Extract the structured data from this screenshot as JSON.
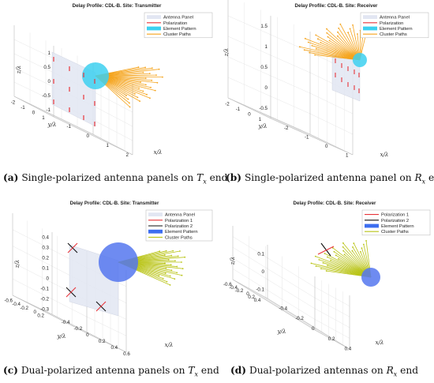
{
  "chart_data": [
    {
      "type": "scatter",
      "title": "Delay Profile: CDL-B. Site: Transmitter",
      "xlabel": "x/λ",
      "ylabel": "y/λ",
      "zlabel": "z/λ",
      "x_ticks": [
        "-1",
        "0",
        "1",
        "2"
      ],
      "y_ticks": [
        "-2",
        "-1",
        "0",
        "1"
      ],
      "z_ticks": [
        "-1",
        "-0.5",
        "0",
        "0.5",
        "1"
      ],
      "legend": [
        "Antenna Panel",
        "Polarization",
        "Element Pattern",
        "Cluster Paths"
      ],
      "legend_colors": [
        "#e2e6f2",
        "#e8343a",
        "#3dd0f0",
        "#f5a31a"
      ],
      "caption_tag": "(a)",
      "caption_text": "Single-polarized antenna panels on",
      "caption_sym": "T",
      "caption_sub": "x",
      "caption_end": "end"
    },
    {
      "type": "scatter",
      "title": "Delay Profile: CDL-B. Site: Receiver",
      "xlabel": "x/λ",
      "ylabel": "y/λ",
      "zlabel": "z/λ",
      "x_ticks": [
        "-2",
        "-1",
        "0",
        "1"
      ],
      "y_ticks": [
        "-2",
        "-1",
        "0",
        "1"
      ],
      "z_ticks": [
        "-0.5",
        "0",
        "0.5",
        "1",
        "1.5"
      ],
      "legend": [
        "Antenna Panel",
        "Polarization",
        "Element Pattern",
        "Cluster Paths"
      ],
      "legend_colors": [
        "#e2e6f2",
        "#e8343a",
        "#3dd0f0",
        "#f5a31a"
      ],
      "caption_tag": "(b)",
      "caption_text": "Single-polarized antenna panel on",
      "caption_sym": "R",
      "caption_sub": "x",
      "caption_end": "end"
    },
    {
      "type": "scatter",
      "title": "Delay Profile: CDL-B. Site: Transmitter",
      "xlabel": "x/λ",
      "ylabel": "y/λ",
      "zlabel": "z/λ",
      "x_ticks": [
        "-0.4",
        "-0.2",
        "0",
        "0.2",
        "0.4",
        "0.6"
      ],
      "y_ticks": [
        "-0.6",
        "-0.4",
        "-0.2",
        "0",
        "0.2"
      ],
      "z_ticks": [
        "-0.3",
        "-0.2",
        "-0.1",
        "0",
        "0.1",
        "0.2",
        "0.3",
        "0.4"
      ],
      "legend": [
        "Antenna Panel",
        "Polarization 1",
        "Polarization 2",
        "Element Pattern",
        "Cluster Paths"
      ],
      "legend_colors": [
        "#e2e6f2",
        "#e8343a",
        "#111111",
        "#3d6ef0",
        "#b9c417"
      ],
      "caption_tag": "(c)",
      "caption_text": "Dual-polarized antenna panels on",
      "caption_sym": "T",
      "caption_sub": "x",
      "caption_end": "end"
    },
    {
      "type": "scatter",
      "title": "Delay Profile: CDL-B. Site: Receiver",
      "xlabel": "x/λ",
      "ylabel": "y/λ",
      "zlabel": "z/λ",
      "x_ticks": [
        "-0.4",
        "-0.2",
        "0",
        "0.2",
        "0.4"
      ],
      "y_ticks": [
        "-0.6",
        "-0.4",
        "-0.2",
        "0",
        "0.2",
        "0.4"
      ],
      "z_ticks": [
        "-0.1",
        "0",
        "0.1"
      ],
      "legend": [
        "Polarization 1",
        "Polarization 2",
        "Element Pattern",
        "Cluster Paths"
      ],
      "legend_colors": [
        "#e8343a",
        "#111111",
        "#3d6ef0",
        "#b9c417"
      ],
      "caption_tag": "(d)",
      "caption_text": "Dual-polarized antennas on",
      "caption_sym": "R",
      "caption_sub": "x",
      "caption_end": "end"
    }
  ]
}
